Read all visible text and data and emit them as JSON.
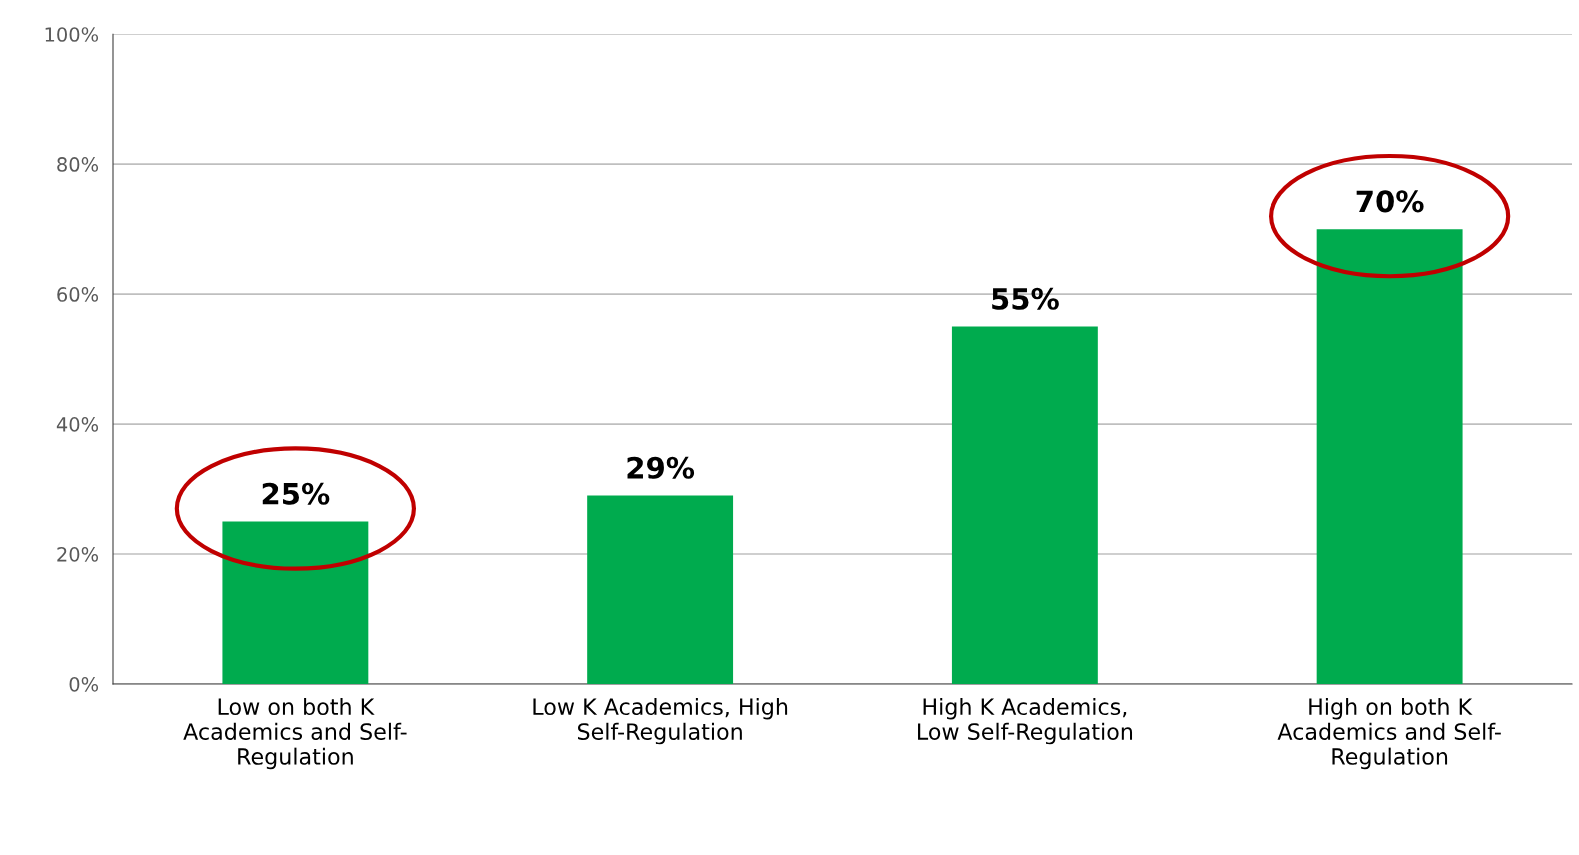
{
  "chart_data": {
    "type": "bar",
    "categories": [
      "Low on both K\nAcademics and Self-\nRegulation",
      "Low K Academics, High\nSelf-Regulation",
      "High K Academics,\nLow Self-Regulation",
      "High on both K\nAcademics and Self-\nRegulation"
    ],
    "values": [
      25,
      29,
      55,
      70
    ],
    "color": "#00ab4e",
    "value_labels": [
      "25%",
      "29%",
      "55%",
      "70%"
    ],
    "ylim": [
      0,
      100
    ],
    "yticks": [
      {
        "value": 0,
        "label": "0%"
      },
      {
        "value": 20,
        "label": "20%"
      },
      {
        "value": 40,
        "label": "40%"
      },
      {
        "value": 60,
        "label": "60%"
      },
      {
        "value": 80,
        "label": "80%"
      },
      {
        "value": 100,
        "label": "100%"
      }
    ],
    "grid": "y"
  }
}
